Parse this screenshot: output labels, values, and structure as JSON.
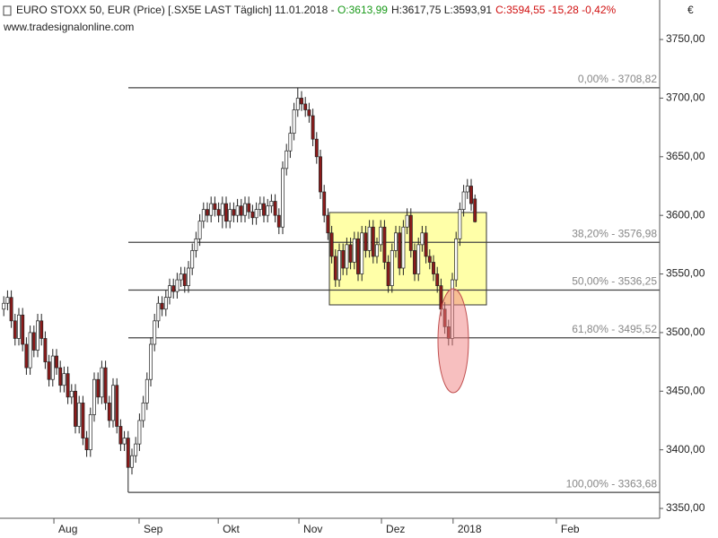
{
  "chart_data": {
    "type": "candlestick",
    "title": "EURO STOXX 50, EUR (Price) [.SX5E LAST Täglich] 11.01.2018 - ",
    "quote_open": "O:3613,99",
    "quote_high_low": "H:3617,75 L:3593,91",
    "quote_close": "C:3594,55 -15,28 -0,42%",
    "source": "www.tradesignalonline.com",
    "currency": "€",
    "up_color": "#ffffff",
    "down_color": "#8b1a1a",
    "xlim": [
      -1,
      174
    ],
    "ylim": [
      3341.6,
      3783.7
    ],
    "xticks": [
      {
        "value": 13.3,
        "label": "Aug"
      },
      {
        "value": 35.9,
        "label": "Sep"
      },
      {
        "value": 56.9,
        "label": "Okt"
      },
      {
        "value": 78.3,
        "label": "Nov"
      },
      {
        "value": 100.2,
        "label": "Dez"
      },
      {
        "value": 119.2,
        "label": "2018"
      },
      {
        "value": 146.6,
        "label": "Feb"
      }
    ],
    "yticks": [
      {
        "value": 3350,
        "label": "3350,00"
      },
      {
        "value": 3400,
        "label": "3400,00"
      },
      {
        "value": 3450,
        "label": "3450,00"
      },
      {
        "value": 3500,
        "label": "3500,00"
      },
      {
        "value": 3550,
        "label": "3550,00"
      },
      {
        "value": 3600,
        "label": "3600,00"
      },
      {
        "value": 3650,
        "label": "3650,00"
      },
      {
        "value": 3700,
        "label": "3700,00"
      },
      {
        "value": 3750,
        "label": "3750,00"
      }
    ],
    "fib_levels": [
      {
        "value": 3708.82,
        "label": "0,00% - 3708,82"
      },
      {
        "value": 3576.98,
        "label": "38,20% - 3576,98"
      },
      {
        "value": 3536.25,
        "label": "50,00% - 3536,25"
      },
      {
        "value": 3495.52,
        "label": "61,80% - 3495,52"
      },
      {
        "value": 3363.68,
        "label": "100,00% - 3363,68"
      }
    ],
    "open": [
      3520,
      3525,
      3530,
      3510,
      3495,
      3515,
      3490,
      3470,
      3500,
      3485,
      3510,
      3495,
      3475,
      3460,
      3480,
      3470,
      3455,
      3465,
      3445,
      3450,
      3420,
      3440,
      3410,
      3400,
      3430,
      3460,
      3445,
      3470,
      3440,
      3425,
      3455,
      3420,
      3405,
      3410,
      3385,
      3395,
      3405,
      3425,
      3440,
      3460,
      3490,
      3510,
      3525,
      3520,
      3530,
      3540,
      3535,
      3545,
      3550,
      3540,
      3555,
      3570,
      3580,
      3595,
      3605,
      3600,
      3610,
      3605,
      3600,
      3610,
      3595,
      3605,
      3600,
      3608,
      3600,
      3610,
      3603,
      3598,
      3605,
      3610,
      3600,
      3608,
      3612,
      3600,
      3590,
      3640,
      3655,
      3670,
      3690,
      3700,
      3695,
      3690,
      3685,
      3665,
      3650,
      3620,
      3600,
      3585,
      3565,
      3545,
      3570,
      3555,
      3575,
      3560,
      3580,
      3550,
      3585,
      3570,
      3590,
      3565,
      3575,
      3590,
      3560,
      3540,
      3570,
      3585,
      3555,
      3590,
      3600,
      3570,
      3550,
      3575,
      3585,
      3565,
      3560,
      3550,
      3540,
      3520,
      3505,
      3495,
      3545,
      3580,
      3605,
      3620,
      3625,
      3613.99
    ],
    "high": [
      3531,
      3536,
      3536,
      3516,
      3521,
      3521,
      3496,
      3506,
      3506,
      3516,
      3516,
      3501,
      3481,
      3486,
      3486,
      3476,
      3471,
      3471,
      3456,
      3456,
      3446,
      3446,
      3416,
      3436,
      3466,
      3466,
      3476,
      3476,
      3446,
      3461,
      3461,
      3426,
      3416,
      3416,
      3401,
      3411,
      3431,
      3446,
      3466,
      3496,
      3516,
      3531,
      3531,
      3536,
      3546,
      3546,
      3551,
      3556,
      3556,
      3561,
      3576,
      3586,
      3601,
      3611,
      3611,
      3616,
      3616,
      3611,
      3616,
      3616,
      3611,
      3611,
      3614,
      3614,
      3616,
      3616,
      3609,
      3611,
      3616,
      3616,
      3614,
      3618,
      3618,
      3606,
      3646,
      3661,
      3676,
      3696,
      3708.82,
      3706,
      3701,
      3696,
      3691,
      3671,
      3656,
      3626,
      3606,
      3591,
      3571,
      3576,
      3576,
      3581,
      3581,
      3586,
      3586,
      3591,
      3591,
      3596,
      3596,
      3581,
      3596,
      3596,
      3566,
      3576,
      3591,
      3591,
      3596,
      3606,
      3606,
      3576,
      3581,
      3591,
      3591,
      3571,
      3566,
      3556,
      3546,
      3526,
      3511,
      3551,
      3586,
      3611,
      3626,
      3631,
      3631,
      3617.75
    ],
    "low": [
      3514,
      3519,
      3504,
      3489,
      3489,
      3484,
      3464,
      3464,
      3479,
      3479,
      3489,
      3469,
      3454,
      3454,
      3464,
      3449,
      3449,
      3439,
      3439,
      3414,
      3414,
      3404,
      3394,
      3394,
      3424,
      3439,
      3439,
      3434,
      3419,
      3419,
      3414,
      3399,
      3399,
      3363.68,
      3379,
      3389,
      3399,
      3419,
      3434,
      3454,
      3484,
      3504,
      3514,
      3514,
      3524,
      3529,
      3529,
      3539,
      3534,
      3534,
      3549,
      3564,
      3574,
      3589,
      3594,
      3594,
      3599,
      3594,
      3589,
      3589,
      3589,
      3594,
      3594,
      3594,
      3594,
      3597,
      3592,
      3592,
      3599,
      3594,
      3594,
      3602,
      3594,
      3584,
      3584,
      3634,
      3649,
      3664,
      3684,
      3689,
      3684,
      3679,
      3659,
      3644,
      3614,
      3594,
      3579,
      3559,
      3539,
      3539,
      3549,
      3549,
      3554,
      3554,
      3544,
      3544,
      3564,
      3564,
      3559,
      3559,
      3569,
      3554,
      3534,
      3534,
      3564,
      3549,
      3549,
      3584,
      3564,
      3544,
      3544,
      3569,
      3559,
      3554,
      3544,
      3534,
      3514,
      3499,
      3489,
      3489,
      3539,
      3574,
      3599,
      3614,
      3604,
      3593.91
    ],
    "close": [
      3525,
      3530,
      3510,
      3495,
      3515,
      3490,
      3470,
      3500,
      3485,
      3510,
      3495,
      3475,
      3460,
      3480,
      3470,
      3455,
      3465,
      3445,
      3450,
      3420,
      3440,
      3410,
      3400,
      3430,
      3460,
      3445,
      3470,
      3440,
      3425,
      3455,
      3420,
      3405,
      3410,
      3385,
      3395,
      3405,
      3425,
      3440,
      3460,
      3490,
      3510,
      3525,
      3520,
      3530,
      3540,
      3535,
      3545,
      3550,
      3540,
      3555,
      3570,
      3580,
      3595,
      3605,
      3600,
      3610,
      3605,
      3600,
      3610,
      3595,
      3605,
      3600,
      3608,
      3600,
      3610,
      3603,
      3598,
      3605,
      3610,
      3600,
      3608,
      3612,
      3600,
      3590,
      3640,
      3655,
      3670,
      3690,
      3700,
      3695,
      3690,
      3685,
      3665,
      3650,
      3620,
      3600,
      3585,
      3565,
      3545,
      3570,
      3555,
      3575,
      3560,
      3580,
      3550,
      3585,
      3570,
      3590,
      3565,
      3575,
      3590,
      3560,
      3540,
      3570,
      3585,
      3555,
      3590,
      3600,
      3570,
      3550,
      3575,
      3585,
      3565,
      3560,
      3550,
      3540,
      3520,
      3505,
      3495,
      3545,
      3580,
      3605,
      3620,
      3625,
      3610,
      3594.55
    ]
  }
}
